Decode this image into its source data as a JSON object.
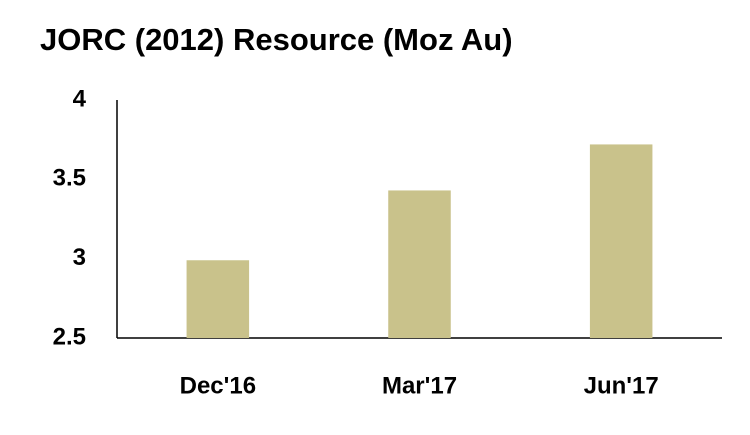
{
  "chart_data": {
    "type": "bar",
    "title": "JORC (2012) Resource (Moz Au)",
    "categories": [
      "Dec'16",
      "Mar'17",
      "Jun'17"
    ],
    "values": [
      2.99,
      3.43,
      3.72
    ],
    "color": "#c9c28b",
    "ylim": [
      2.5,
      4
    ],
    "yticks": [
      2.5,
      3,
      3.5,
      4
    ],
    "grid": false
  }
}
